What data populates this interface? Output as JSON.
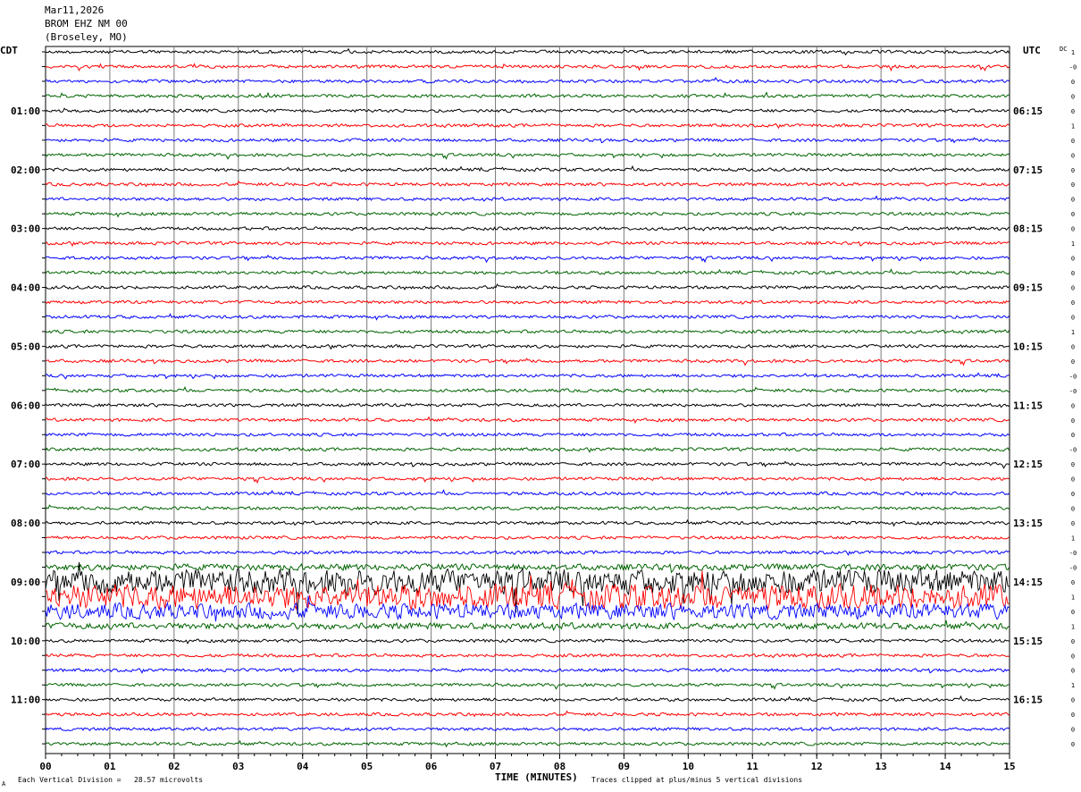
{
  "header": {
    "date": "Mar11,2026",
    "station": "BROM EHZ NM 00",
    "location": "(Broseley, MO)"
  },
  "left_tz": "CDT",
  "right_tz": "UTC",
  "dc_label": "DC",
  "footer": {
    "scale_text": "Each Vertical Division =   28.57 microvolts",
    "clip_text": "Traces clipped at plus/minus 5 vertical divisions",
    "mark": "A"
  },
  "chart_data": {
    "type": "line",
    "title": "",
    "xlabel": "TIME (MINUTES)",
    "xlim": [
      0,
      15
    ],
    "x_ticks": [
      "00",
      "01",
      "02",
      "03",
      "04",
      "05",
      "06",
      "07",
      "08",
      "09",
      "10",
      "11",
      "12",
      "13",
      "14",
      "15"
    ],
    "trace_colors": [
      "#000000",
      "#ff0000",
      "#0000ff",
      "#006400"
    ],
    "left_hour_labels": [
      "01:00",
      "02:00",
      "03:00",
      "04:00",
      "05:00",
      "06:00",
      "07:00",
      "08:00",
      "09:00",
      "10:00",
      "11:00"
    ],
    "right_hour_labels": [
      "06:15",
      "07:15",
      "08:15",
      "09:15",
      "10:15",
      "11:15",
      "12:15",
      "13:15",
      "14:15",
      "15:15",
      "16:15"
    ],
    "dc_offsets": [
      "1",
      "-0",
      "0",
      "0",
      "0",
      "1",
      "0",
      "0",
      "0",
      "0",
      "0",
      "0",
      "0",
      "1",
      "0",
      "0",
      "0",
      "0",
      "0",
      "1",
      "0",
      "0",
      "-0",
      "-0",
      "0",
      "0",
      "0",
      "-0",
      "0",
      "0",
      "0",
      "0",
      "0",
      "1",
      "-0",
      "-0",
      "0",
      "1",
      "0",
      "1",
      "0",
      "0",
      "0",
      "1",
      "0",
      "0",
      "0",
      "0"
    ],
    "noise_levels": [
      1,
      1,
      1,
      1,
      1,
      1,
      1,
      1,
      1,
      1,
      1,
      1,
      1,
      1,
      1,
      1,
      1,
      1,
      1,
      1,
      1,
      1,
      1,
      1,
      1,
      1,
      1,
      1,
      1,
      1,
      1,
      1,
      1,
      1,
      1,
      2,
      8,
      8,
      5,
      2,
      1,
      1,
      1,
      1,
      1,
      1,
      1,
      1
    ]
  }
}
